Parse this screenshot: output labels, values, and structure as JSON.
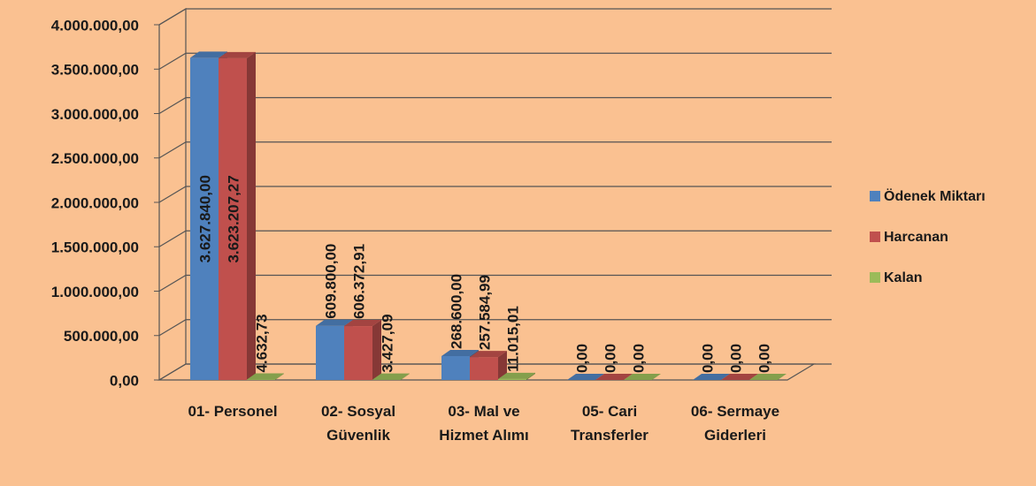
{
  "chart_data": {
    "type": "bar3d",
    "categories": [
      "01- Personel",
      "02- Sosyal Güvenlik",
      "03- Mal ve Hizmet Alımı",
      "05- Cari Transferler",
      "06- Sermaye Giderleri"
    ],
    "series": [
      {
        "name": "Ödenek Miktarı",
        "color": "#4f81bd",
        "values": [
          3627840,
          609800,
          268600,
          0,
          0
        ],
        "value_labels": [
          "3.627.840,00",
          "609.800,00",
          "268.600,00",
          "0,00",
          "0,00"
        ]
      },
      {
        "name": "Harcanan",
        "color": "#c0504d",
        "values": [
          3623207.27,
          606372.91,
          257584.99,
          0,
          0
        ],
        "value_labels": [
          "3.623.207,27",
          "606.372,91",
          "257.584,99",
          "0,00",
          "0,00"
        ]
      },
      {
        "name": "Kalan",
        "color": "#9bbb59",
        "values": [
          4632.73,
          3427.09,
          11015.01,
          0,
          0
        ],
        "value_labels": [
          "4.632,73",
          "3.427,09",
          "11.015,01",
          "0,00",
          "0,00"
        ]
      }
    ],
    "ylim": [
      0,
      4000000
    ],
    "yticks": [
      {
        "value": 0,
        "label": "0,00"
      },
      {
        "value": 500000,
        "label": "500.000,00"
      },
      {
        "value": 1000000,
        "label": "1.000.000,00"
      },
      {
        "value": 1500000,
        "label": "1.500.000,00"
      },
      {
        "value": 2000000,
        "label": "2.000.000,00"
      },
      {
        "value": 2500000,
        "label": "2.500.000,00"
      },
      {
        "value": 3000000,
        "label": "3.000.000,00"
      },
      {
        "value": 3500000,
        "label": "3.500.000,00"
      },
      {
        "value": 4000000,
        "label": "4.000.000,00"
      }
    ],
    "grid": true,
    "legend": "right"
  }
}
